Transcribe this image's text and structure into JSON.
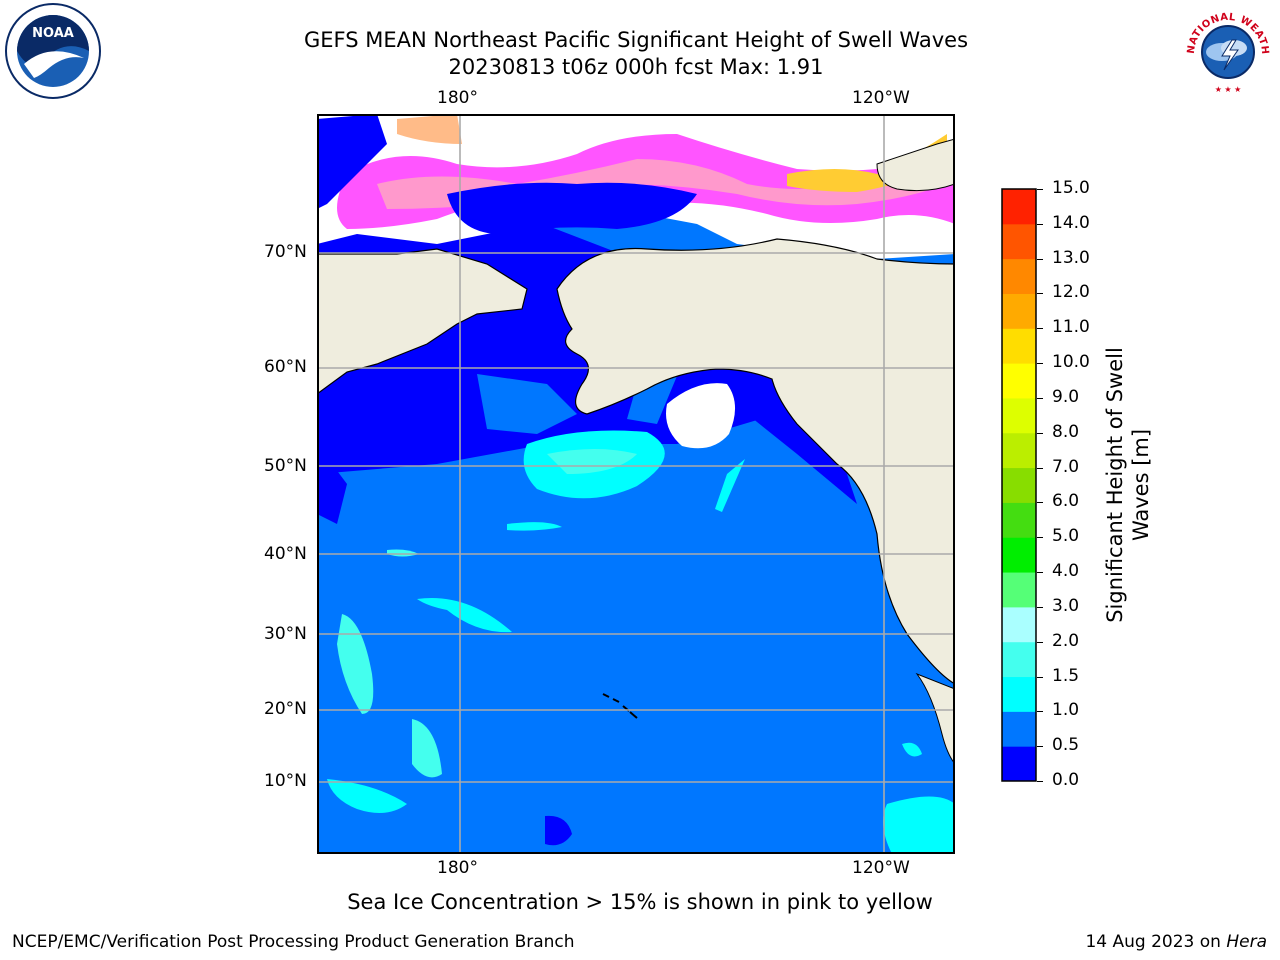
{
  "title_line1": "GEFS MEAN Northeast Pacific Significant Height of Swell Waves",
  "title_line2": "20230813 t06z 000h fcst   Max: 1.91",
  "map": {
    "lon_labels_top": [
      "180°",
      "120°W"
    ],
    "lon_labels_bottom": [
      "180°",
      "120°W"
    ],
    "lat_labels": [
      "70°N",
      "60°N",
      "50°N",
      "40°N",
      "30°N",
      "20°N",
      "10°N"
    ],
    "colors": {
      "land": "#efedde",
      "ocean_0_0_5": "#0000ff",
      "ocean_0_5_1_0": "#0077ff",
      "ocean_1_0_1_5": "#00ffff",
      "ocean_1_5_2_0": "#44ffee",
      "ice_pink": "#ff55ff",
      "ice_yellow": "#ffcc33",
      "grid": "#aaaaaa"
    }
  },
  "colorbar": {
    "title_line1": "Significant Height of Swell",
    "title_line2": "Waves [m]",
    "tick_labels": [
      "0.0",
      "0.5",
      "1.0",
      "1.5",
      "2.0",
      "3.0",
      "4.0",
      "5.0",
      "6.0",
      "7.0",
      "8.0",
      "9.0",
      "10.0",
      "11.0",
      "12.0",
      "13.0",
      "14.0",
      "15.0"
    ],
    "colors": [
      "#0000ff",
      "#0077ff",
      "#00ffff",
      "#44ffee",
      "#aaffff",
      "#55ff77",
      "#00ee00",
      "#44dd11",
      "#88dd00",
      "#bbee00",
      "#ddff00",
      "#ffff00",
      "#ffdd00",
      "#ffaa00",
      "#ff8800",
      "#ff5500",
      "#ff2200"
    ]
  },
  "caption": "Sea Ice Concentration > 15% is shown in pink to yellow",
  "footer_left": "NCEP/EMC/Verification Post Processing Product Generation Branch",
  "footer_right_date": "14 Aug 2023 on",
  "footer_right_host": "Hera",
  "logos": {
    "left": "noaa-logo",
    "left_text": "NOAA",
    "right": "national-weather-service-logo",
    "right_text": "NATIONAL WEATHER SERVICE"
  }
}
